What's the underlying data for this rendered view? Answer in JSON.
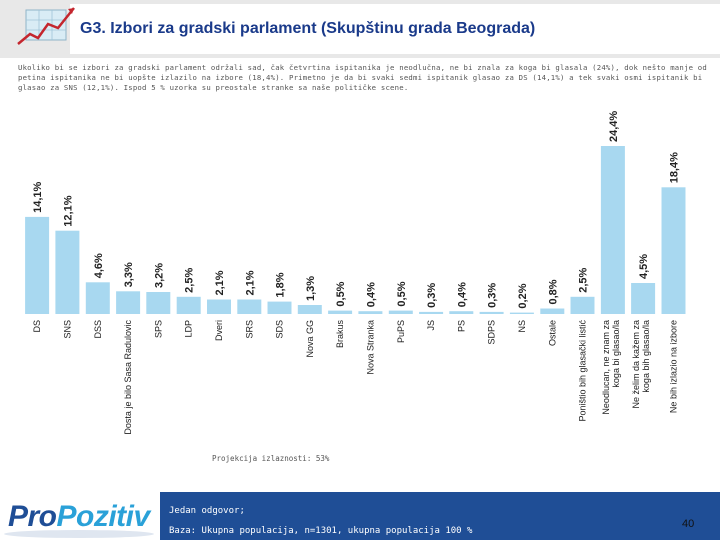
{
  "header": {
    "title": "G3. Izbori za gradski parlament (Skupštinu grada Beograda)"
  },
  "description": "Ukoliko bi se izbori za gradski parlament održali sad, čak četvrtina ispitanika je neodlučna, ne bi znala za koga bi glasala (24%), dok nešto manje od petina ispitanika ne bi uopšte izlazilo na izbore (18,4%). Primetno je da bi svaki sedmi ispitanik glasao za DS (14,1%) a tek svaki osmi ispitanik bi glasao za SNS (12,1%). Ispod 5 % uzorka su preostale stranke sa naše političke scene.",
  "projection_note": "Projekcija izlaznosti: 53%",
  "footer": {
    "line1": "Jedan odgovor;",
    "line2": "Baza: Ukupna populacija, n=1301, ukupna populacija 100 %",
    "page_number": "40"
  },
  "brand": {
    "part1": "Pro",
    "part2": "Pozitiv"
  },
  "colors": {
    "bar": "#a8d8f0",
    "header_title": "#1a3a8a",
    "footer_bg": "#1f4e96"
  },
  "chart_data": {
    "type": "bar",
    "title": "G3. Izbori za gradski parlament (Skupštinu grada Beograda)",
    "categories": [
      "DS",
      "SNS",
      "DSS",
      "Dosta je bilo Sasa Radulovic",
      "SPS",
      "LDP",
      "Dveri",
      "SRS",
      "SDS",
      "Nova GG",
      "Brakus",
      "Nova Stranka",
      "PuPS",
      "JS",
      "PS",
      "SDPS",
      "NS",
      "Ostale",
      "Poništio bih glasački listić",
      "Neodlucan, ne znam za koga bi glasao/la",
      "Ne želim da kažem za koga bih glasao/la",
      "Ne bih izlazio na izbore"
    ],
    "values": [
      14.1,
      12.1,
      4.6,
      3.3,
      3.2,
      2.5,
      2.1,
      2.1,
      1.8,
      1.3,
      0.5,
      0.4,
      0.5,
      0.3,
      0.4,
      0.3,
      0.2,
      0.8,
      2.5,
      24.4,
      4.5,
      18.4
    ],
    "value_labels": [
      "14,1%",
      "12,1%",
      "4,6%",
      "3,3%",
      "3,2%",
      "2,5%",
      "2,1%",
      "2,1%",
      "1,8%",
      "1,3%",
      "0,5%",
      "0,4%",
      "0,5%",
      "0,3%",
      "0,4%",
      "0,3%",
      "0,2%",
      "0,8%",
      "2,5%",
      "24,4%",
      "4,5%",
      "18,4%"
    ],
    "ylim": [
      0,
      24.4
    ],
    "xlabel": "",
    "ylabel": ""
  }
}
